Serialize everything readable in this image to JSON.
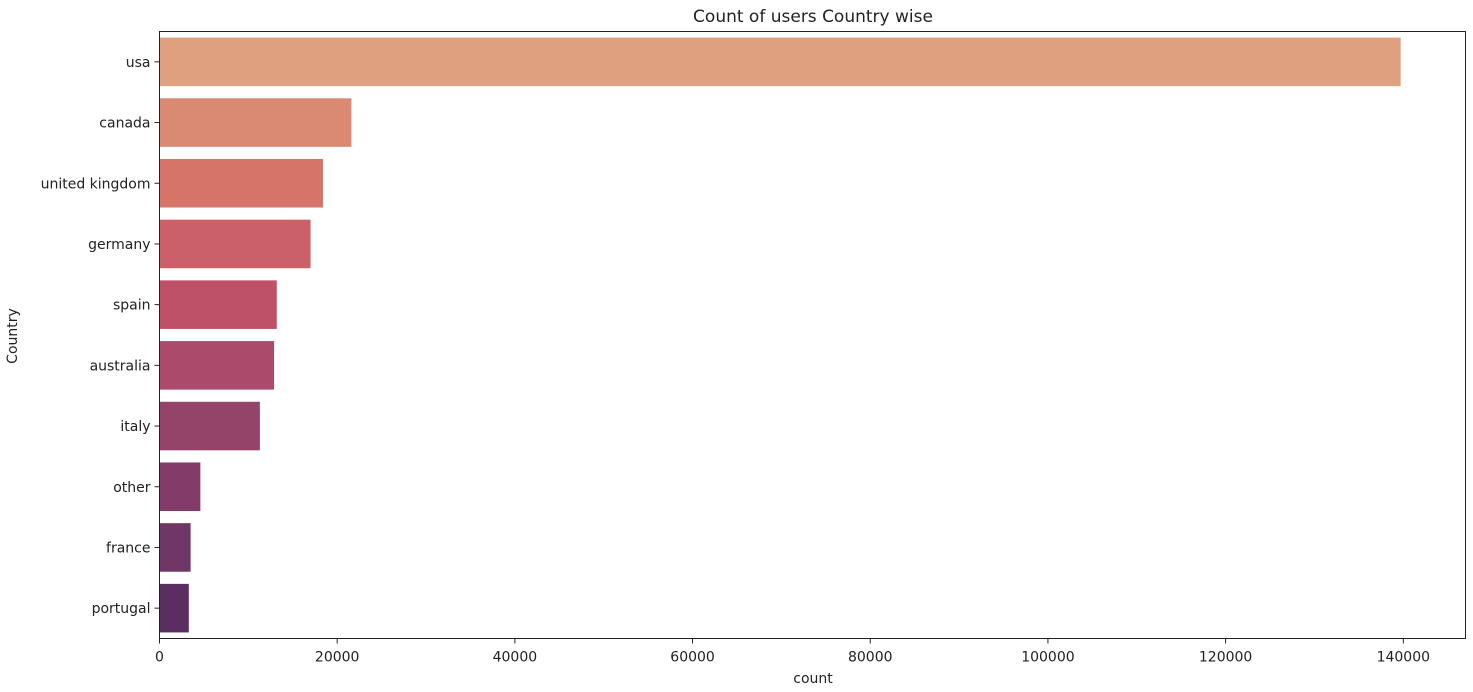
{
  "chart_data": {
    "type": "bar",
    "orientation": "horizontal",
    "title": "Count of users Country wise",
    "xlabel": "count",
    "ylabel": "Country",
    "categories": [
      "usa",
      "canada",
      "united kingdom",
      "germany",
      "spain",
      "australia",
      "italy",
      "other",
      "france",
      "portugal"
    ],
    "values": [
      139700,
      21600,
      18400,
      17000,
      13200,
      12900,
      11300,
      4600,
      3500,
      3300
    ],
    "colors": [
      "#dfa07f",
      "#da8a72",
      "#d5756a",
      "#cc6068",
      "#be5067",
      "#ab4a6b",
      "#954469",
      "#833c6a",
      "#6f3766",
      "#5a2e60"
    ],
    "xlim": [
      0,
      147000
    ],
    "xticks": [
      0,
      20000,
      40000,
      60000,
      80000,
      100000,
      120000,
      140000
    ],
    "xtick_labels": [
      "0",
      "20000",
      "40000",
      "60000",
      "80000",
      "100000",
      "120000",
      "140000"
    ],
    "grid": false,
    "legend": "none"
  }
}
